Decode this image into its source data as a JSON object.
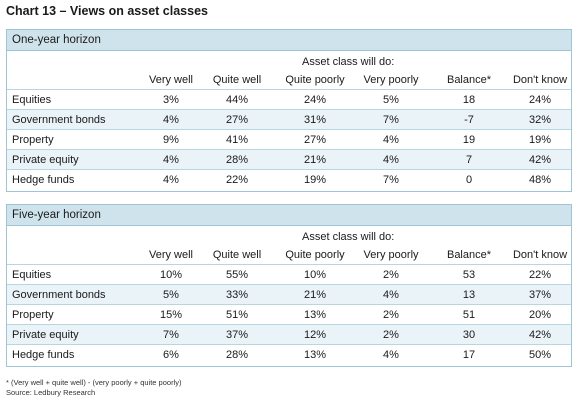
{
  "title": "Chart 13 – Views on asset classes",
  "group_header": "Asset class will do:",
  "columns": [
    "Very well",
    "Quite well",
    "Quite poorly",
    "Very poorly",
    "Balance*",
    "Don't know"
  ],
  "panels": [
    {
      "title": "One-year horizon",
      "rows": [
        {
          "label": "Equities",
          "values": [
            "3%",
            "44%",
            "24%",
            "5%",
            "18",
            "24%"
          ]
        },
        {
          "label": "Government bonds",
          "values": [
            "4%",
            "27%",
            "31%",
            "7%",
            "-7",
            "32%"
          ]
        },
        {
          "label": "Property",
          "values": [
            "9%",
            "41%",
            "27%",
            "4%",
            "19",
            "19%"
          ]
        },
        {
          "label": "Private equity",
          "values": [
            "4%",
            "28%",
            "21%",
            "4%",
            "7",
            "42%"
          ]
        },
        {
          "label": "Hedge funds",
          "values": [
            "4%",
            "22%",
            "19%",
            "7%",
            "0",
            "48%"
          ]
        }
      ]
    },
    {
      "title": "Five-year horizon",
      "rows": [
        {
          "label": "Equities",
          "values": [
            "10%",
            "55%",
            "10%",
            "2%",
            "53",
            "22%"
          ]
        },
        {
          "label": "Government bonds",
          "values": [
            "5%",
            "33%",
            "21%",
            "4%",
            "13",
            "37%"
          ]
        },
        {
          "label": "Property",
          "values": [
            "15%",
            "51%",
            "13%",
            "2%",
            "51",
            "20%"
          ]
        },
        {
          "label": "Private equity",
          "values": [
            "7%",
            "37%",
            "12%",
            "2%",
            "30",
            "42%"
          ]
        },
        {
          "label": "Hedge funds",
          "values": [
            "6%",
            "28%",
            "13%",
            "4%",
            "17",
            "50%"
          ]
        }
      ]
    }
  ],
  "footnotes": [
    "* (Very well + quite well) - (very poorly + quite poorly)",
    "Source: Ledbury Research"
  ]
}
